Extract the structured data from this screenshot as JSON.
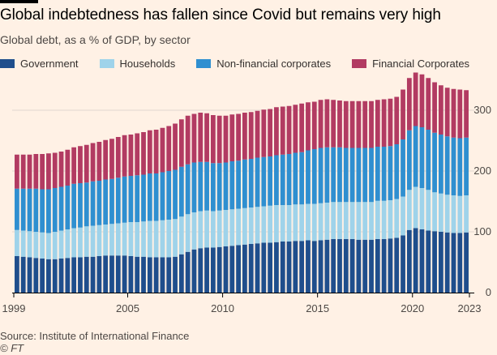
{
  "header": {
    "title": "Global indebtedness has fallen since Covid but remains very high",
    "subtitle": "Global debt, as a % of GDP, by sector"
  },
  "footer": {
    "source": "Source: Institute of International Finance",
    "credit": "© FT"
  },
  "chart_data": {
    "type": "bar",
    "stacked": true,
    "title": "Global indebtedness has fallen since Covid but remains very high",
    "subtitle": "Global debt, as a % of GDP, by sector",
    "xlabel": "",
    "ylabel": "",
    "ylim": [
      0,
      345
    ],
    "yticks": [
      0,
      100,
      200,
      300
    ],
    "x_tick_labels": [
      "1999",
      "2005",
      "2010",
      "2015",
      "2020",
      "2023"
    ],
    "grid": true,
    "legend_position": "top",
    "series": [
      {
        "name": "Government",
        "color": "#1f4e8c",
        "values": [
          60,
          59,
          58,
          57,
          56,
          55,
          55,
          56,
          57,
          58,
          58,
          59,
          59,
          60,
          61,
          61,
          61,
          61,
          60,
          59,
          59,
          58,
          58,
          58,
          58,
          59,
          63,
          67,
          71,
          73,
          74,
          74,
          75,
          76,
          77,
          78,
          79,
          80,
          81,
          82,
          82,
          83,
          84,
          84,
          85,
          85,
          86,
          85,
          86,
          87,
          88,
          88,
          88,
          88,
          87,
          87,
          87,
          88,
          88,
          89,
          90,
          94,
          103,
          106,
          104,
          102,
          101,
          100,
          99,
          98,
          98,
          99
        ]
      },
      {
        "name": "Households",
        "color": "#9fd3ea",
        "values": [
          43,
          43,
          43,
          43,
          43,
          43,
          45,
          46,
          47,
          48,
          49,
          50,
          51,
          51,
          51,
          52,
          53,
          54,
          56,
          57,
          58,
          60,
          60,
          61,
          62,
          62,
          62,
          62,
          61,
          61,
          61,
          60,
          60,
          60,
          60,
          60,
          60,
          60,
          60,
          60,
          61,
          61,
          60,
          60,
          60,
          60,
          60,
          61,
          61,
          61,
          61,
          61,
          61,
          61,
          62,
          62,
          62,
          63,
          63,
          63,
          64,
          64,
          66,
          68,
          68,
          67,
          64,
          63,
          62,
          62,
          61,
          61
        ]
      },
      {
        "name": "Non-financial corporates",
        "color": "#2f8fd0",
        "values": [
          68,
          69,
          70,
          71,
          71,
          72,
          72,
          72,
          72,
          73,
          73,
          72,
          73,
          73,
          74,
          74,
          75,
          76,
          76,
          77,
          77,
          78,
          78,
          79,
          80,
          81,
          82,
          82,
          82,
          81,
          80,
          79,
          78,
          78,
          79,
          79,
          80,
          80,
          81,
          81,
          81,
          82,
          83,
          84,
          85,
          86,
          88,
          90,
          91,
          91,
          90,
          90,
          89,
          89,
          89,
          89,
          89,
          89,
          89,
          89,
          90,
          94,
          98,
          100,
          100,
          99,
          98,
          97,
          96,
          95,
          95,
          95
        ]
      },
      {
        "name": "Financial Corporates",
        "color": "#b23b62",
        "values": [
          56,
          56,
          56,
          57,
          58,
          59,
          58,
          58,
          59,
          60,
          61,
          62,
          63,
          64,
          65,
          66,
          67,
          68,
          68,
          69,
          70,
          71,
          72,
          73,
          74,
          76,
          78,
          80,
          80,
          81,
          80,
          79,
          78,
          77,
          77,
          77,
          77,
          77,
          77,
          78,
          78,
          79,
          79,
          79,
          79,
          80,
          79,
          78,
          79,
          79,
          78,
          77,
          77,
          77,
          77,
          77,
          77,
          77,
          78,
          78,
          78,
          82,
          86,
          88,
          87,
          85,
          83,
          81,
          80,
          80,
          80,
          78
        ]
      }
    ]
  }
}
